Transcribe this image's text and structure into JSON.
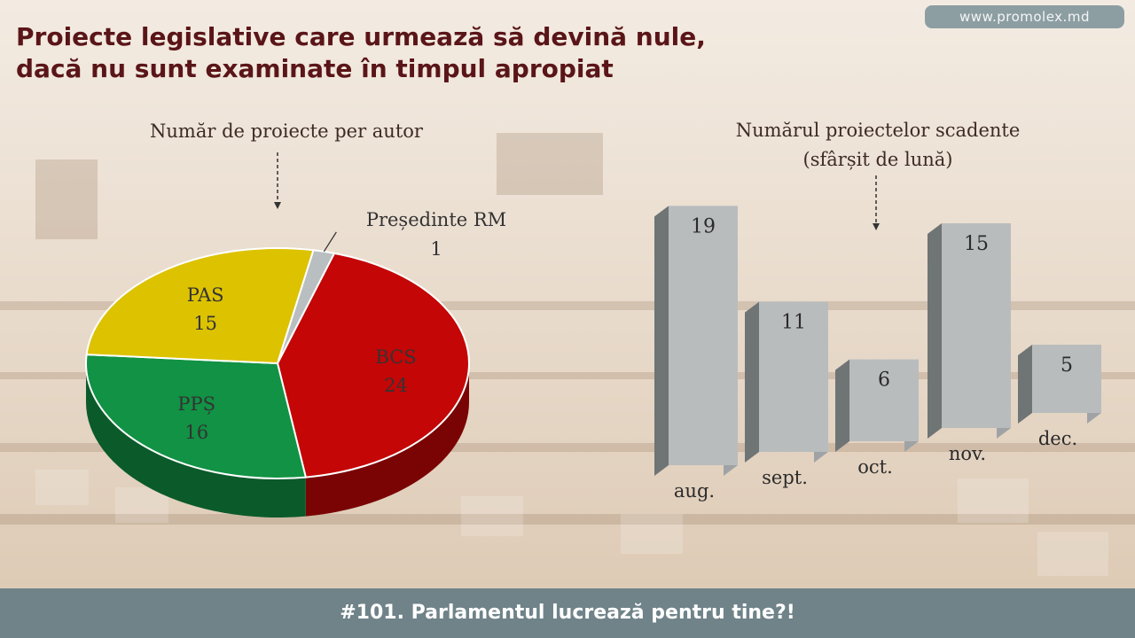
{
  "header": {
    "title_line1": "Proiecte legislative care urmează să devină nule,",
    "title_line2": "dacă nu sunt examinate în timpul apropiat",
    "url": "www.promolex.md"
  },
  "footer": {
    "text": "#101. Parlamentul lucrează pentru tine?!"
  },
  "colors": {
    "title": "#5a1518",
    "badge": "#8d9ea2",
    "footer": "#6f8389",
    "bars": "#b9bcbd"
  },
  "chart_data": [
    {
      "type": "pie",
      "title": "Număr de proiecte per autor",
      "slices": [
        {
          "label": "BCS",
          "value": 24,
          "color": "#c40606"
        },
        {
          "label": "PPȘ",
          "value": 16,
          "color": "#119244"
        },
        {
          "label": "PAS",
          "value": 15,
          "color": "#ddc200"
        },
        {
          "label": "Președinte RM",
          "value": 1,
          "color": "#b9bec0"
        }
      ]
    },
    {
      "type": "bar",
      "title_line1": "Numărul proiectelor scadente",
      "title_line2": "(sfârșit de lună)",
      "categories": [
        "aug.",
        "sept.",
        "oct.",
        "nov.",
        "dec."
      ],
      "values": [
        19,
        11,
        6,
        15,
        5
      ]
    }
  ]
}
